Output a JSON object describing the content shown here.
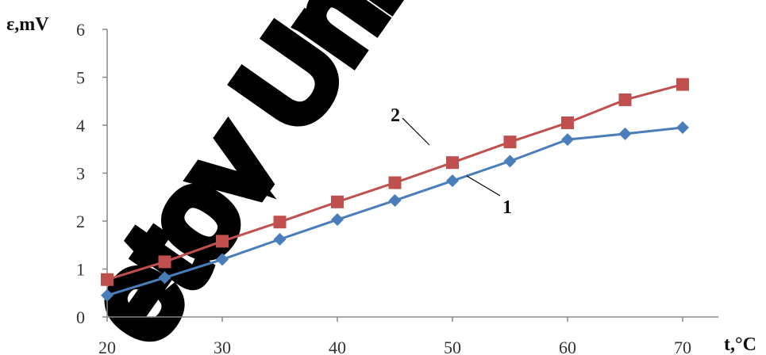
{
  "chart_data": {
    "type": "line",
    "xlabel": "t,°C",
    "ylabel": "ε,mV",
    "xlim": [
      20,
      70
    ],
    "ylim": [
      0,
      6
    ],
    "xticks": [
      20,
      30,
      40,
      50,
      60,
      70
    ],
    "yticks": [
      0,
      1,
      2,
      3,
      4,
      5,
      6
    ],
    "grid": false,
    "x": [
      20,
      25,
      30,
      35,
      40,
      45,
      50,
      55,
      60,
      65,
      70
    ],
    "series": [
      {
        "name": "1",
        "color": "#4a7ebb",
        "marker": "diamond",
        "values": [
          0.45,
          0.82,
          1.2,
          1.62,
          2.03,
          2.43,
          2.84,
          3.25,
          3.7,
          3.82,
          3.95
        ]
      },
      {
        "name": "2",
        "color": "#c0504d",
        "marker": "square",
        "values": [
          0.78,
          1.15,
          1.58,
          1.98,
          2.4,
          2.8,
          3.22,
          3.65,
          4.05,
          4.53,
          4.85
        ]
      }
    ]
  },
  "watermark": {
    "text": "Uni...etov Uni",
    "text_visible": "etov Uni"
  }
}
